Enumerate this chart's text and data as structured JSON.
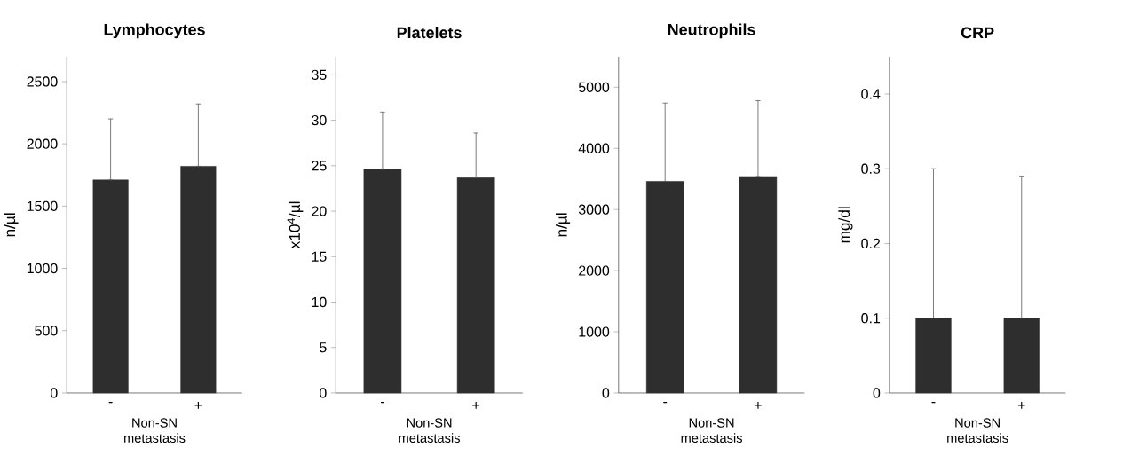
{
  "chart_data": [
    {
      "type": "bar",
      "title": "Lymphocytes",
      "xlabel": "Non-SN metastasis",
      "ylabel": "n/µl",
      "categories": [
        "-",
        "+"
      ],
      "values": [
        1710,
        1820
      ],
      "errors": [
        [
          1710,
          2200
        ],
        [
          1820,
          2320
        ]
      ],
      "color": "#2e2e2e",
      "ylim": [
        0,
        2700
      ],
      "yticks": [
        0,
        500,
        1000,
        1500,
        2000,
        2500
      ]
    },
    {
      "type": "bar",
      "title": "Platelets",
      "xlabel": "Non-SN metastasis",
      "ylabel": "x10$^{4}$/µl",
      "categories": [
        "-",
        "+"
      ],
      "values": [
        24.6,
        23.7
      ],
      "errors": [
        [
          24.6,
          30.9
        ],
        [
          23.7,
          28.6
        ]
      ],
      "color": "#2e2e2e",
      "ylim": [
        0,
        37
      ],
      "yticks": [
        0,
        5,
        10,
        15,
        20,
        25,
        30,
        35
      ]
    },
    {
      "type": "bar",
      "title": "Neutrophils",
      "xlabel": "Non-SN metastasis",
      "ylabel": "n/µl",
      "categories": [
        "-",
        "+"
      ],
      "values": [
        3460,
        3540
      ],
      "errors": [
        [
          3460,
          4740
        ],
        [
          3540,
          4780
        ]
      ],
      "color": "#2e2e2e",
      "ylim": [
        0,
        5500
      ],
      "yticks": [
        0,
        1000,
        2000,
        3000,
        4000,
        5000
      ]
    },
    {
      "type": "bar",
      "title": "CRP",
      "xlabel": "Non-SN metastasis",
      "ylabel": "mg/dl",
      "categories": [
        "-",
        "+"
      ],
      "values": [
        0.1,
        0.1
      ],
      "errors": [
        [
          0.1,
          0.3
        ],
        [
          0.1,
          0.29
        ]
      ],
      "color": "#2e2e2e",
      "ylim": [
        0,
        0.45
      ],
      "yticks": [
        0,
        0.1,
        0.2,
        0.3,
        0.4
      ]
    }
  ]
}
